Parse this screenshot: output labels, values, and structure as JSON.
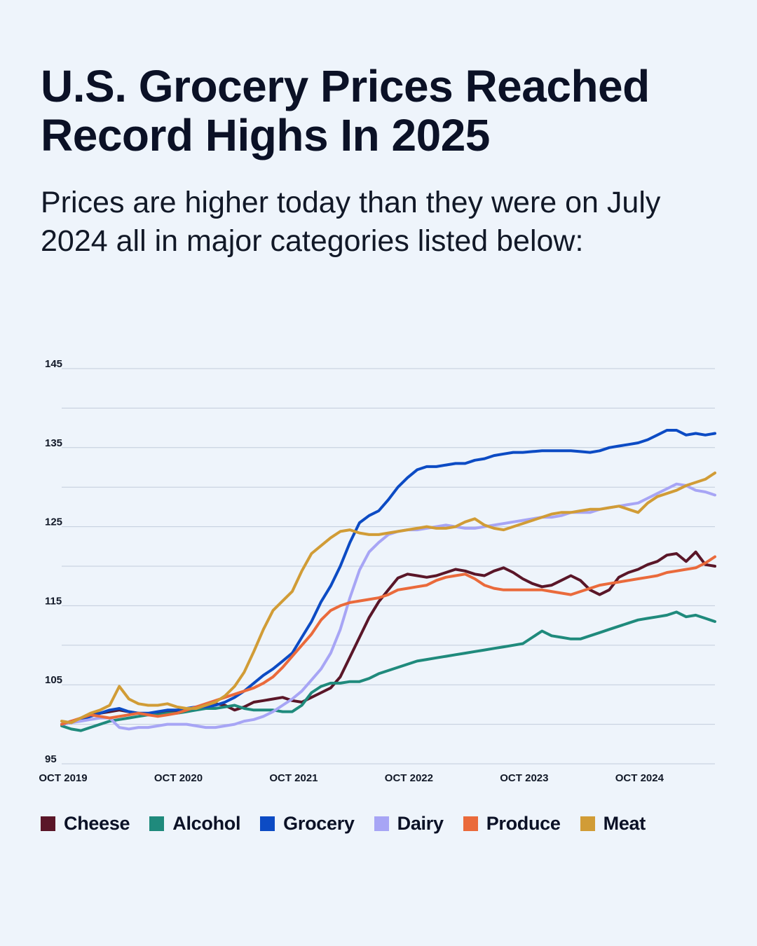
{
  "header": {
    "title": "U.S. Grocery Prices Reached Record Highs In 2025",
    "subtitle": "Prices are higher today than they were on July 2024 all in major categories listed below:"
  },
  "chart_data": {
    "type": "line",
    "title": "",
    "xlabel": "",
    "ylabel": "",
    "ylim": [
      95,
      145
    ],
    "xlim": [
      "2019-10",
      "2025-06"
    ],
    "y_ticks": [
      95,
      105,
      115,
      125,
      135,
      145
    ],
    "x_ticks": [
      {
        "label": "OCT 2019",
        "date": "2019-10"
      },
      {
        "label": "OCT 2020",
        "date": "2020-10"
      },
      {
        "label": "OCT 2021",
        "date": "2021-10"
      },
      {
        "label": "OCT 2022",
        "date": "2022-10"
      },
      {
        "label": "OCT 2023",
        "date": "2023-10"
      },
      {
        "label": "OCT 2024",
        "date": "2024-10"
      }
    ],
    "grid": true,
    "legend_position": "bottom",
    "x": [
      "2019-10",
      "2019-11",
      "2019-12",
      "2020-01",
      "2020-02",
      "2020-03",
      "2020-04",
      "2020-05",
      "2020-06",
      "2020-07",
      "2020-08",
      "2020-09",
      "2020-10",
      "2020-11",
      "2020-12",
      "2021-01",
      "2021-02",
      "2021-03",
      "2021-04",
      "2021-05",
      "2021-06",
      "2021-07",
      "2021-08",
      "2021-09",
      "2021-10",
      "2021-11",
      "2021-12",
      "2022-01",
      "2022-02",
      "2022-03",
      "2022-04",
      "2022-05",
      "2022-06",
      "2022-07",
      "2022-08",
      "2022-09",
      "2022-10",
      "2022-11",
      "2022-12",
      "2023-01",
      "2023-02",
      "2023-03",
      "2023-04",
      "2023-05",
      "2023-06",
      "2023-07",
      "2023-08",
      "2023-09",
      "2023-10",
      "2023-11",
      "2023-12",
      "2024-01",
      "2024-02",
      "2024-03",
      "2024-04",
      "2024-05",
      "2024-06",
      "2024-07",
      "2024-08",
      "2024-09",
      "2024-10",
      "2024-11",
      "2024-12",
      "2025-01",
      "2025-02",
      "2025-03",
      "2025-04",
      "2025-05",
      "2025-06"
    ],
    "series": [
      {
        "name": "Cheese",
        "color": "#5a1628",
        "values": [
          100,
          100.4,
          100.6,
          101.2,
          101.4,
          101.6,
          101.8,
          101.6,
          101.4,
          101.2,
          101.3,
          101.5,
          101.6,
          101.8,
          102,
          102.2,
          102.6,
          102.4,
          101.8,
          102.2,
          102.8,
          103,
          103.2,
          103.4,
          103,
          102.8,
          103.4,
          104,
          104.6,
          106,
          108.5,
          111,
          113.5,
          115.5,
          117,
          118.5,
          119,
          118.8,
          118.6,
          118.8,
          119.2,
          119.6,
          119.4,
          119,
          118.8,
          119.4,
          119.8,
          119.2,
          118.4,
          117.8,
          117.4,
          117.6,
          118.2,
          118.8,
          118.2,
          117,
          116.4,
          117,
          118.6,
          119.2,
          119.6,
          120.2,
          120.6,
          121.4,
          121.6,
          120.6,
          121.8,
          120.2,
          120
        ]
      },
      {
        "name": "Alcohol",
        "color": "#1f8a7c",
        "values": [
          99.8,
          99.4,
          99.2,
          99.6,
          100,
          100.4,
          100.6,
          100.8,
          101,
          101.2,
          101.2,
          101.4,
          101.4,
          101.6,
          101.8,
          102,
          102,
          102.2,
          102.4,
          102,
          101.8,
          101.8,
          101.8,
          101.6,
          101.6,
          102.4,
          104,
          104.8,
          105.2,
          105.2,
          105.4,
          105.4,
          105.8,
          106.4,
          106.8,
          107.2,
          107.6,
          108,
          108.2,
          108.4,
          108.6,
          108.8,
          109,
          109.2,
          109.4,
          109.6,
          109.8,
          110,
          110.2,
          111,
          111.8,
          111.2,
          111,
          110.8,
          110.8,
          111.2,
          111.6,
          112,
          112.4,
          112.8,
          113.2,
          113.4,
          113.6,
          113.8,
          114.2,
          113.6,
          113.8,
          113.4,
          113
        ]
      },
      {
        "name": "Grocery",
        "color": "#0c4bc4",
        "values": [
          100,
          100.2,
          100.6,
          101,
          101.4,
          101.8,
          102,
          101.6,
          101.4,
          101.4,
          101.6,
          101.8,
          101.8,
          102,
          102.2,
          102.2,
          102.4,
          102.8,
          103.4,
          104.2,
          105.2,
          106.2,
          107,
          108,
          109,
          111,
          113,
          115.5,
          117.5,
          120,
          123,
          125.5,
          126.4,
          127,
          128.4,
          130,
          131.2,
          132.2,
          132.6,
          132.6,
          132.8,
          133,
          133,
          133.4,
          133.6,
          134,
          134.2,
          134.4,
          134.4,
          134.5,
          134.6,
          134.6,
          134.6,
          134.6,
          134.5,
          134.4,
          134.6,
          135,
          135.2,
          135.4,
          135.6,
          136,
          136.6,
          137.2,
          137.2,
          136.6,
          136.8,
          136.6,
          136.8
        ]
      },
      {
        "name": "Dairy",
        "color": "#a7a5f5",
        "values": [
          100,
          100.2,
          100.4,
          100.6,
          100.8,
          100.8,
          99.6,
          99.4,
          99.6,
          99.6,
          99.8,
          100,
          100,
          100,
          99.8,
          99.6,
          99.6,
          99.8,
          100,
          100.4,
          100.6,
          101,
          101.6,
          102.4,
          103.2,
          104.2,
          105.6,
          107,
          109,
          112,
          116,
          119.5,
          121.8,
          123,
          124,
          124.4,
          124.6,
          124.6,
          124.8,
          125,
          125.2,
          125,
          124.8,
          124.8,
          125,
          125.2,
          125.4,
          125.6,
          125.8,
          126,
          126.2,
          126.2,
          126.4,
          126.8,
          126.8,
          126.8,
          127.2,
          127.4,
          127.6,
          127.8,
          128,
          128.6,
          129.2,
          129.8,
          130.4,
          130.2,
          129.6,
          129.4,
          129
        ]
      },
      {
        "name": "Produce",
        "color": "#ea6a3b",
        "values": [
          100,
          100.4,
          100.8,
          101.2,
          101,
          100.8,
          101,
          101.2,
          101.4,
          101.2,
          101,
          101.2,
          101.4,
          101.8,
          102.2,
          102.6,
          103,
          103.4,
          103.8,
          104.2,
          104.6,
          105.2,
          106,
          107.2,
          108.6,
          110,
          111.4,
          113.2,
          114.4,
          115,
          115.4,
          115.6,
          115.8,
          116,
          116.4,
          117,
          117.2,
          117.4,
          117.6,
          118.2,
          118.6,
          118.8,
          119,
          118.4,
          117.6,
          117.2,
          117,
          117,
          117,
          117,
          117,
          116.8,
          116.6,
          116.4,
          116.8,
          117.2,
          117.6,
          117.8,
          118,
          118.2,
          118.4,
          118.6,
          118.8,
          119.2,
          119.4,
          119.6,
          119.8,
          120.4,
          121.2
        ]
      },
      {
        "name": "Meat",
        "color": "#d19c36",
        "values": [
          100.4,
          100.2,
          100.8,
          101.4,
          101.8,
          102.4,
          104.8,
          103.2,
          102.6,
          102.4,
          102.4,
          102.6,
          102.2,
          102,
          102,
          102.4,
          102.8,
          103.6,
          104.8,
          106.6,
          109.2,
          112,
          114.4,
          115.6,
          116.8,
          119.4,
          121.6,
          122.6,
          123.6,
          124.4,
          124.6,
          124.2,
          124,
          124,
          124.2,
          124.4,
          124.6,
          124.8,
          125,
          124.8,
          124.8,
          125,
          125.6,
          126,
          125.2,
          124.8,
          124.6,
          125,
          125.4,
          125.8,
          126.2,
          126.6,
          126.8,
          126.8,
          127,
          127.2,
          127.2,
          127.4,
          127.6,
          127.2,
          126.8,
          128,
          128.8,
          129.2,
          129.6,
          130.2,
          130.6,
          131,
          131.8
        ]
      }
    ]
  }
}
